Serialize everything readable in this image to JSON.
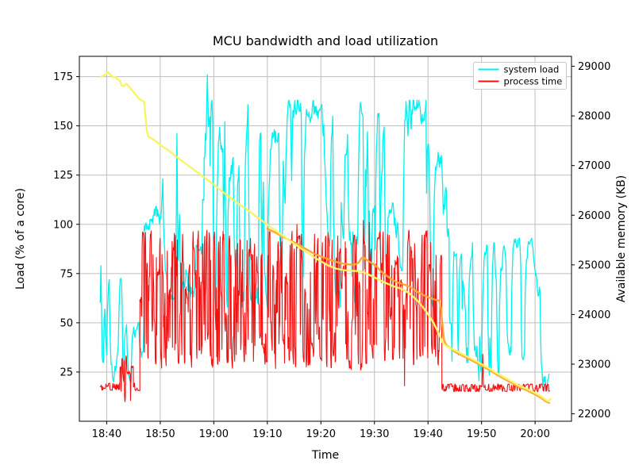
{
  "chart_data": {
    "type": "line",
    "title": "MCU bandwidth and load utilization",
    "grid": true,
    "legend_position": "upper right",
    "x_axis": {
      "label": "Time",
      "origin_time": "18:40",
      "range_minutes": [
        -5.1,
        86.8
      ],
      "tick_minutes": [
        0,
        10,
        20,
        30,
        40,
        50,
        60,
        70,
        80
      ],
      "tick_labels": [
        "18:40",
        "18:50",
        "19:00",
        "19:10",
        "19:20",
        "19:30",
        "19:40",
        "19:50",
        "20:00"
      ]
    },
    "y_left": {
      "label": "Load (% of a core)",
      "range": [
        0,
        185.3
      ],
      "ticks": [
        25,
        50,
        75,
        100,
        125,
        150,
        175
      ],
      "tick_labels": [
        "25",
        "50",
        "75",
        "100",
        "125",
        "150",
        "175"
      ]
    },
    "y_right": {
      "label": "Available memory (KB)",
      "range": [
        21850,
        29200
      ],
      "ticks": [
        22000,
        23000,
        24000,
        25000,
        26000,
        27000,
        28000,
        29000
      ],
      "tick_labels": [
        "22000",
        "23000",
        "24000",
        "25000",
        "26000",
        "27000",
        "28000",
        "29000"
      ]
    },
    "colors": {
      "system_load": "#00efef",
      "process_time": "#f21212",
      "memory_yellow": "#f8f468",
      "memory_orange": "#ffa733",
      "grid": "#bfbfbf",
      "spine": "#000000"
    },
    "legend_items": [
      {
        "label": "system load",
        "color": "#00efef"
      },
      {
        "label": "process time",
        "color": "#f21212"
      }
    ],
    "series": [
      {
        "name": "system load",
        "axis": "left",
        "color": "#00efef",
        "style": "noisy",
        "lw": 1.3,
        "dt": 0.12,
        "retarget": 0.22,
        "chase": 0.5,
        "jitter": 0.12,
        "segments": [
          {
            "t0": -1.2,
            "t1": 7.0,
            "lo": 20,
            "hi": 80
          },
          {
            "t0": 7.0,
            "t1": 18.2,
            "lo": 62,
            "hi": 146
          },
          {
            "t0": 18.2,
            "t1": 19.3,
            "lo": 95,
            "hi": 176
          },
          {
            "t0": 19.3,
            "t1": 64.0,
            "lo": 58,
            "hi": 163
          },
          {
            "t0": 64.0,
            "t1": 82.7,
            "lo": 16,
            "hi": 93
          }
        ],
        "peaks": [
          {
            "t": -1.1,
            "v": 79
          },
          {
            "t": 3.1,
            "v": 20
          },
          {
            "t": 13.0,
            "v": 146
          },
          {
            "t": 18.7,
            "v": 176
          },
          {
            "t": 22.0,
            "v": 152
          },
          {
            "t": 34.3,
            "v": 161
          },
          {
            "t": 40.3,
            "v": 145
          },
          {
            "t": 48.6,
            "v": 147
          },
          {
            "t": 56.2,
            "v": 145
          },
          {
            "t": 79.5,
            "v": 88
          },
          {
            "t": 82.5,
            "v": 24
          }
        ]
      },
      {
        "name": "process time",
        "axis": "left",
        "color": "#f21212",
        "style": "noisy",
        "lw": 1.1,
        "dt": 0.07,
        "retarget": 0.55,
        "chase": 0.85,
        "jitter": 0.08,
        "segments": [
          {
            "t0": -1.2,
            "t1": 2.5,
            "lo": 15.5,
            "hi": 19.5
          },
          {
            "t0": 2.5,
            "t1": 5.0,
            "lo": 8,
            "hi": 34
          },
          {
            "t0": 5.0,
            "t1": 6.2,
            "lo": 15.5,
            "hi": 19.5
          },
          {
            "t0": 6.2,
            "t1": 62.6,
            "lo": 26,
            "hi": 97
          },
          {
            "t0": 62.6,
            "t1": 82.7,
            "lo": 15,
            "hi": 19
          }
        ],
        "peaks": [
          {
            "t": 35.5,
            "v": 100
          },
          {
            "t": 47.9,
            "v": 102
          },
          {
            "t": 49.0,
            "v": 101
          },
          {
            "t": 55.6,
            "v": 18
          },
          {
            "t": 70.2,
            "v": 34
          }
        ]
      },
      {
        "name": "available memory (orange)",
        "axis": "right",
        "color": "#ffa733",
        "style": "points",
        "lw": 2.4,
        "points": [
          [
            30.0,
            25730
          ],
          [
            31.5,
            25650
          ],
          [
            33.0,
            25560
          ],
          [
            34.5,
            25480
          ],
          [
            36.0,
            25400
          ],
          [
            37.5,
            25300
          ],
          [
            39.0,
            25210
          ],
          [
            40.5,
            25150
          ],
          [
            42.0,
            25090
          ],
          [
            43.5,
            25040
          ],
          [
            45.0,
            25010
          ],
          [
            46.2,
            25000
          ],
          [
            47.0,
            25040
          ],
          [
            47.6,
            25140
          ],
          [
            48.2,
            25130
          ],
          [
            48.8,
            25080
          ],
          [
            49.6,
            25030
          ],
          [
            50.5,
            24960
          ],
          [
            51.3,
            24860
          ],
          [
            52.2,
            24790
          ],
          [
            53.2,
            24710
          ],
          [
            54.2,
            24650
          ],
          [
            55.4,
            24610
          ],
          [
            56.6,
            24560
          ],
          [
            57.8,
            24470
          ],
          [
            59.0,
            24400
          ],
          [
            60.2,
            24340
          ],
          [
            61.3,
            24300
          ],
          [
            62.1,
            24280
          ],
          [
            62.4,
            24150
          ],
          [
            62.7,
            23800
          ],
          [
            63.0,
            23480
          ],
          [
            63.4,
            23390
          ],
          [
            65.0,
            23250
          ],
          [
            67.0,
            23140
          ],
          [
            69.0,
            23030
          ],
          [
            71.0,
            22910
          ],
          [
            73.0,
            22780
          ],
          [
            75.0,
            22660
          ],
          [
            77.0,
            22540
          ],
          [
            78.5,
            22470
          ],
          [
            80.0,
            22390
          ],
          [
            81.0,
            22330
          ],
          [
            82.0,
            22250
          ],
          [
            82.6,
            22220
          ]
        ]
      },
      {
        "name": "available memory (yellow)",
        "axis": "right",
        "color": "#f8f468",
        "style": "points",
        "lw": 2.4,
        "points": [
          [
            -1.0,
            28790
          ],
          [
            -0.3,
            28830
          ],
          [
            0.3,
            28880
          ],
          [
            0.8,
            28820
          ],
          [
            1.2,
            28780
          ],
          [
            1.6,
            28790
          ],
          [
            2.1,
            28730
          ],
          [
            2.5,
            28700
          ],
          [
            2.8,
            28610
          ],
          [
            3.2,
            28600
          ],
          [
            3.7,
            28650
          ],
          [
            4.3,
            28570
          ],
          [
            4.9,
            28500
          ],
          [
            5.5,
            28420
          ],
          [
            6.1,
            28340
          ],
          [
            6.7,
            28300
          ],
          [
            7.0,
            28280
          ],
          [
            7.2,
            28050
          ],
          [
            7.5,
            27700
          ],
          [
            7.8,
            27580
          ],
          [
            8.5,
            27540
          ],
          [
            9.3,
            27480
          ],
          [
            10.2,
            27400
          ],
          [
            11.5,
            27310
          ],
          [
            13.0,
            27180
          ],
          [
            14.5,
            27060
          ],
          [
            16.0,
            26940
          ],
          [
            17.5,
            26820
          ],
          [
            19.0,
            26700
          ],
          [
            20.5,
            26570
          ],
          [
            22.0,
            26440
          ],
          [
            23.5,
            26320
          ],
          [
            25.0,
            26200
          ],
          [
            26.5,
            26090
          ],
          [
            28.0,
            25970
          ],
          [
            29.5,
            25850
          ],
          [
            31.0,
            25730
          ],
          [
            32.5,
            25620
          ],
          [
            34.0,
            25500
          ],
          [
            35.5,
            25390
          ],
          [
            37.0,
            25280
          ],
          [
            38.5,
            25170
          ],
          [
            40.0,
            25070
          ],
          [
            41.5,
            24980
          ],
          [
            43.0,
            24920
          ],
          [
            44.5,
            24890
          ],
          [
            46.0,
            24880
          ],
          [
            47.5,
            24870
          ],
          [
            49.0,
            24800
          ],
          [
            50.5,
            24720
          ],
          [
            52.0,
            24640
          ],
          [
            53.5,
            24570
          ],
          [
            55.0,
            24520
          ],
          [
            56.5,
            24430
          ],
          [
            58.0,
            24280
          ],
          [
            59.5,
            24090
          ],
          [
            61.0,
            23840
          ],
          [
            62.0,
            23620
          ],
          [
            62.8,
            23420
          ],
          [
            63.5,
            23360
          ],
          [
            65.0,
            23280
          ],
          [
            67.0,
            23170
          ],
          [
            69.0,
            23060
          ],
          [
            71.0,
            22940
          ],
          [
            73.0,
            22810
          ],
          [
            75.0,
            22690
          ],
          [
            77.0,
            22570
          ],
          [
            78.5,
            22500
          ],
          [
            80.0,
            22420
          ],
          [
            81.0,
            22360
          ],
          [
            82.0,
            22280
          ],
          [
            82.5,
            22250
          ],
          [
            82.9,
            22300
          ]
        ]
      }
    ]
  }
}
